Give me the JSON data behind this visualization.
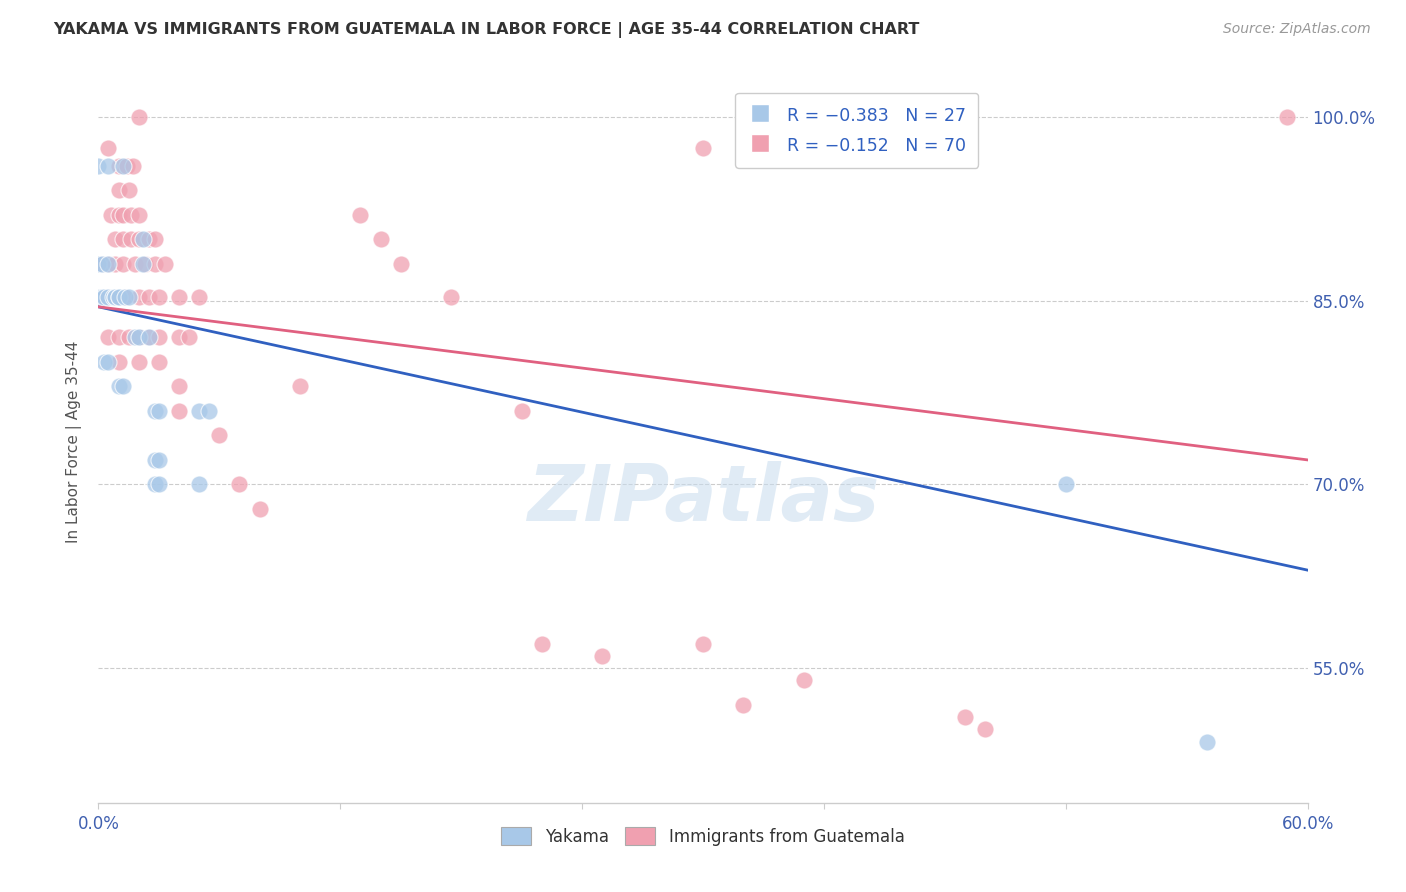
{
  "title": "YAKAMA VS IMMIGRANTS FROM GUATEMALA IN LABOR FORCE | AGE 35-44 CORRELATION CHART",
  "source": "Source: ZipAtlas.com",
  "ylabel_text": "In Labor Force | Age 35-44",
  "x_min": 0.0,
  "x_max": 0.6,
  "y_min": 0.44,
  "y_max": 1.03,
  "y_ticks": [
    0.55,
    0.7,
    0.85,
    1.0
  ],
  "y_tick_labels": [
    "55.0%",
    "70.0%",
    "85.0%",
    "100.0%"
  ],
  "yakama_color": "#a8c8e8",
  "guatemala_color": "#f0a0b0",
  "trendline_yakama_color": "#3060c0",
  "trendline_guatemala_color": "#e06080",
  "trendline_yakama_x0": 0.0,
  "trendline_yakama_y0": 0.845,
  "trendline_yakama_x1": 0.6,
  "trendline_yakama_y1": 0.63,
  "trendline_guatemala_x0": 0.0,
  "trendline_guatemala_y0": 0.845,
  "trendline_guatemala_x1": 0.6,
  "trendline_guatemala_y1": 0.72,
  "watermark": "ZIPatlas",
  "yakama_points": [
    [
      0.0,
      0.96
    ],
    [
      0.005,
      0.96
    ],
    [
      0.012,
      0.96
    ],
    [
      0.022,
      0.9
    ],
    [
      0.022,
      0.88
    ],
    [
      0.0,
      0.88
    ],
    [
      0.002,
      0.88
    ],
    [
      0.005,
      0.88
    ],
    [
      0.0,
      0.853
    ],
    [
      0.0,
      0.853
    ],
    [
      0.002,
      0.853
    ],
    [
      0.002,
      0.853
    ],
    [
      0.003,
      0.853
    ],
    [
      0.005,
      0.853
    ],
    [
      0.007,
      0.853
    ],
    [
      0.008,
      0.853
    ],
    [
      0.008,
      0.853
    ],
    [
      0.01,
      0.853
    ],
    [
      0.01,
      0.853
    ],
    [
      0.013,
      0.853
    ],
    [
      0.015,
      0.853
    ],
    [
      0.018,
      0.82
    ],
    [
      0.02,
      0.82
    ],
    [
      0.025,
      0.82
    ],
    [
      0.003,
      0.8
    ],
    [
      0.005,
      0.8
    ],
    [
      0.01,
      0.78
    ],
    [
      0.012,
      0.78
    ],
    [
      0.028,
      0.76
    ],
    [
      0.03,
      0.76
    ],
    [
      0.05,
      0.76
    ],
    [
      0.055,
      0.76
    ],
    [
      0.028,
      0.72
    ],
    [
      0.03,
      0.72
    ],
    [
      0.028,
      0.7
    ],
    [
      0.03,
      0.7
    ],
    [
      0.05,
      0.7
    ],
    [
      0.48,
      0.7
    ],
    [
      0.55,
      0.49
    ]
  ],
  "guatemala_points": [
    [
      0.02,
      1.0
    ],
    [
      0.005,
      0.975
    ],
    [
      0.3,
      0.975
    ],
    [
      0.01,
      0.96
    ],
    [
      0.014,
      0.96
    ],
    [
      0.017,
      0.96
    ],
    [
      0.01,
      0.94
    ],
    [
      0.015,
      0.94
    ],
    [
      0.006,
      0.92
    ],
    [
      0.01,
      0.92
    ],
    [
      0.012,
      0.92
    ],
    [
      0.016,
      0.92
    ],
    [
      0.02,
      0.92
    ],
    [
      0.13,
      0.92
    ],
    [
      0.008,
      0.9
    ],
    [
      0.012,
      0.9
    ],
    [
      0.016,
      0.9
    ],
    [
      0.02,
      0.9
    ],
    [
      0.025,
      0.9
    ],
    [
      0.028,
      0.9
    ],
    [
      0.14,
      0.9
    ],
    [
      0.002,
      0.88
    ],
    [
      0.005,
      0.88
    ],
    [
      0.008,
      0.88
    ],
    [
      0.012,
      0.88
    ],
    [
      0.018,
      0.88
    ],
    [
      0.023,
      0.88
    ],
    [
      0.028,
      0.88
    ],
    [
      0.033,
      0.88
    ],
    [
      0.15,
      0.88
    ],
    [
      0.0,
      0.853
    ],
    [
      0.0,
      0.853
    ],
    [
      0.0,
      0.853
    ],
    [
      0.0,
      0.853
    ],
    [
      0.002,
      0.853
    ],
    [
      0.005,
      0.853
    ],
    [
      0.007,
      0.853
    ],
    [
      0.01,
      0.853
    ],
    [
      0.013,
      0.853
    ],
    [
      0.02,
      0.853
    ],
    [
      0.025,
      0.853
    ],
    [
      0.03,
      0.853
    ],
    [
      0.04,
      0.853
    ],
    [
      0.05,
      0.853
    ],
    [
      0.175,
      0.853
    ],
    [
      0.005,
      0.82
    ],
    [
      0.01,
      0.82
    ],
    [
      0.015,
      0.82
    ],
    [
      0.02,
      0.82
    ],
    [
      0.025,
      0.82
    ],
    [
      0.03,
      0.82
    ],
    [
      0.04,
      0.82
    ],
    [
      0.045,
      0.82
    ],
    [
      0.01,
      0.8
    ],
    [
      0.02,
      0.8
    ],
    [
      0.03,
      0.8
    ],
    [
      0.04,
      0.78
    ],
    [
      0.1,
      0.78
    ],
    [
      0.04,
      0.76
    ],
    [
      0.21,
      0.76
    ],
    [
      0.06,
      0.74
    ],
    [
      0.07,
      0.7
    ],
    [
      0.08,
      0.68
    ],
    [
      0.22,
      0.57
    ],
    [
      0.3,
      0.57
    ],
    [
      0.25,
      0.56
    ],
    [
      0.35,
      0.54
    ],
    [
      0.32,
      0.52
    ],
    [
      0.43,
      0.51
    ],
    [
      0.44,
      0.5
    ],
    [
      0.59,
      1.0
    ]
  ]
}
